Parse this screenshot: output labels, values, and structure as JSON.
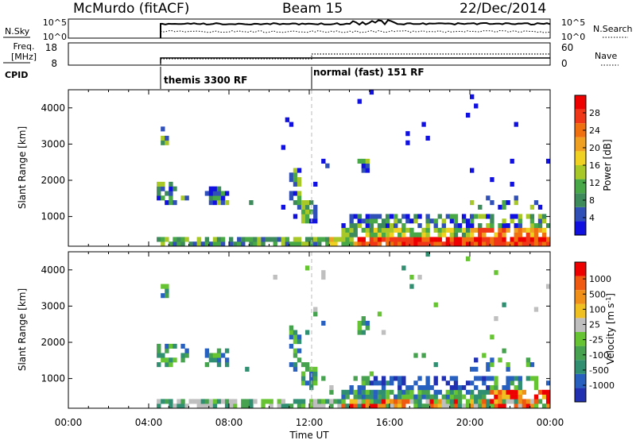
{
  "header": {
    "station": "McMurdo (fitACF)",
    "beam": "Beam 15",
    "date": "22/Dec/2014"
  },
  "noise_panel": {
    "left_label": "N.Sky",
    "right_label": "N.Search",
    "left_ticks": [
      "10^5",
      "10^0"
    ],
    "right_ticks": [
      "10^5",
      "10^0"
    ]
  },
  "freq_panel": {
    "left_label_line1": "Freq.",
    "left_label_line2": "[MHz]",
    "left_ticks": [
      "18",
      "8"
    ],
    "right_label": "Nave",
    "right_ticks": [
      "60",
      "0"
    ]
  },
  "cpid": {
    "label": "CPID",
    "segments": [
      "themis 3300 RF",
      "normal (fast) 151 RF"
    ]
  },
  "chart_data": [
    {
      "type": "heatmap",
      "name": "Power",
      "ylabel": "Slant Range [km]",
      "ylim": [
        180,
        4500
      ],
      "yticks": [
        "1000",
        "2000",
        "3000",
        "4000"
      ],
      "colorbar_label": "Power [dB]",
      "colorbar_ticks": [
        "4",
        "8",
        "12",
        "16",
        "20",
        "24",
        "28"
      ],
      "colors": [
        "#1010e0",
        "#3050b8",
        "#3d8a5a",
        "#48a848",
        "#a8c828",
        "#f0d020",
        "#f0a020",
        "#f07010",
        "#f03818",
        "#ee0000"
      ]
    },
    {
      "type": "heatmap",
      "name": "Velocity",
      "ylabel": "Slant Range [km]",
      "xlabel": "Time UT",
      "ylim": [
        180,
        4500
      ],
      "yticks": [
        "1000",
        "2000",
        "3000",
        "4000"
      ],
      "xticks": [
        "00:00",
        "04:00",
        "08:00",
        "12:00",
        "16:00",
        "20:00",
        "00:00"
      ],
      "colorbar_label": "Velocity [m s^-1]",
      "colorbar_ticks": [
        "1000",
        "500",
        "100",
        "25",
        "-25",
        "-100",
        "-500",
        "-1000"
      ],
      "colors": [
        "#2030b0",
        "#2860c0",
        "#2f8f70",
        "#47a24f",
        "#66c432",
        "#bfbfbf",
        "#f0c020",
        "#f09018",
        "#f05a10",
        "#ee0000"
      ]
    }
  ]
}
